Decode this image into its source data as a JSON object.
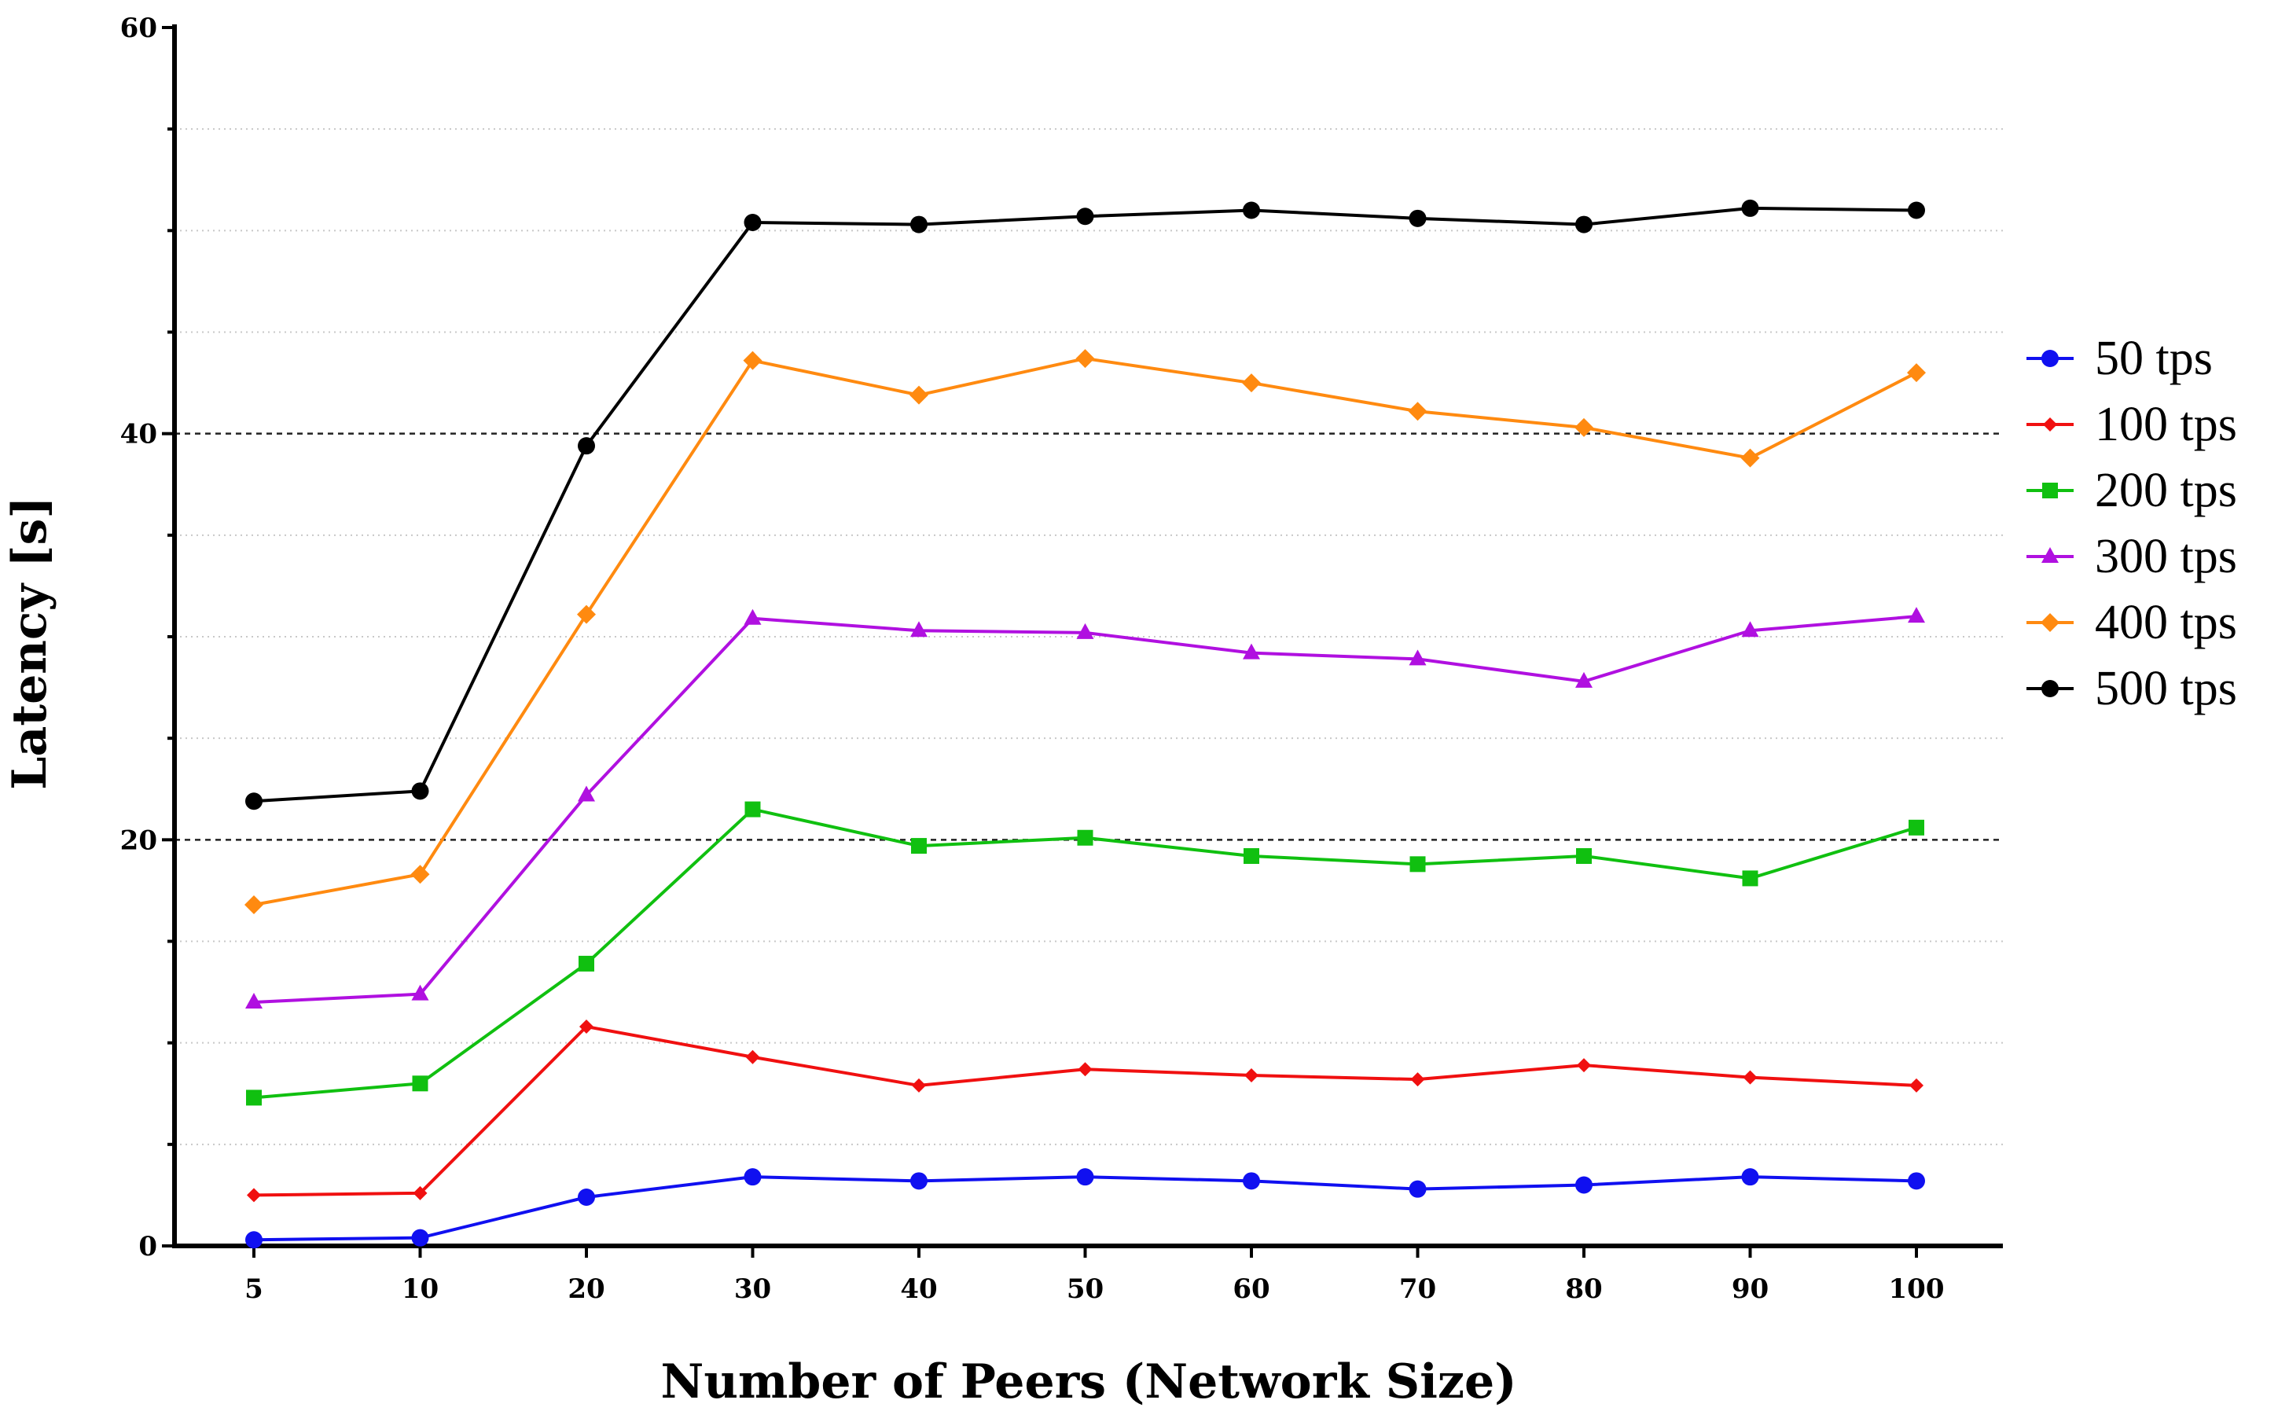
{
  "chart_data": {
    "type": "line",
    "title": "",
    "xlabel": "Number of Peers (Network Size)",
    "ylabel": "Latency [s]",
    "categories": [
      "5",
      "10",
      "20",
      "30",
      "40",
      "50",
      "60",
      "70",
      "80",
      "90",
      "100"
    ],
    "ylim": [
      0,
      60
    ],
    "y_major_ticks": [
      0,
      20,
      40,
      60
    ],
    "y_minor_step": 5,
    "dashed_gridlines_at": [
      20,
      40
    ],
    "legend_position": "right",
    "series": [
      {
        "name": "50 tps",
        "color": "#1010f0",
        "marker": "circle",
        "values": [
          0.3,
          0.4,
          2.4,
          3.4,
          3.2,
          3.4,
          3.2,
          2.8,
          3.0,
          3.4,
          3.2
        ]
      },
      {
        "name": "100 tps",
        "color": "#f01010",
        "marker": "diamond",
        "values": [
          2.5,
          2.6,
          10.8,
          9.3,
          7.9,
          8.7,
          8.4,
          8.2,
          8.9,
          8.3,
          7.9
        ]
      },
      {
        "name": "200 tps",
        "color": "#10c010",
        "marker": "square",
        "values": [
          7.3,
          8.0,
          13.9,
          21.5,
          19.7,
          20.1,
          19.2,
          18.8,
          19.2,
          18.1,
          20.6
        ]
      },
      {
        "name": "300 tps",
        "color": "#b010e0",
        "marker": "triangle",
        "values": [
          12.0,
          12.4,
          22.2,
          30.9,
          30.3,
          30.2,
          29.2,
          28.9,
          27.8,
          30.3,
          31.0
        ]
      },
      {
        "name": "400 tps",
        "color": "#ff8a10",
        "marker": "diamond",
        "values": [
          16.8,
          18.3,
          31.1,
          43.6,
          41.9,
          43.7,
          42.5,
          41.1,
          40.3,
          38.8,
          43.0
        ]
      },
      {
        "name": "500 tps",
        "color": "#000000",
        "marker": "circle",
        "values": [
          21.9,
          22.4,
          39.4,
          50.4,
          50.3,
          50.7,
          51.0,
          50.6,
          50.3,
          51.1,
          51.0
        ]
      }
    ]
  }
}
